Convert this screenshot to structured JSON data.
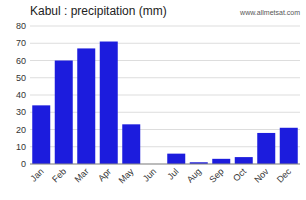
{
  "chart_data": {
    "type": "bar",
    "title": "Kabul : precipitation (mm)",
    "categories": [
      "Jan",
      "Feb",
      "Mar",
      "Apr",
      "May",
      "Jun",
      "Jul",
      "Aug",
      "Sep",
      "Oct",
      "Nov",
      "Dec"
    ],
    "values": [
      34,
      60,
      67,
      71,
      23,
      0,
      6,
      1,
      3,
      4,
      18,
      21
    ],
    "color": "#1c1cdd",
    "ylim": [
      0,
      80
    ],
    "yticks": [
      0,
      10,
      20,
      30,
      40,
      50,
      60,
      70,
      80
    ],
    "grid": true,
    "annotations": [
      "www.allmetsat.com"
    ]
  }
}
